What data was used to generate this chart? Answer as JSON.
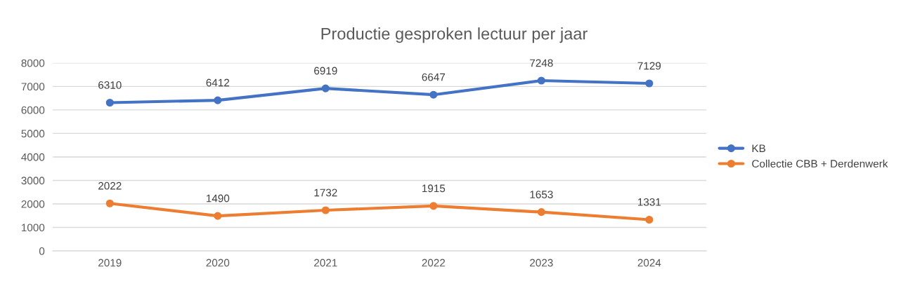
{
  "chart_data": {
    "type": "line",
    "title": "Productie gesproken lectuur per jaar",
    "categories": [
      "2019",
      "2020",
      "2021",
      "2022",
      "2023",
      "2024"
    ],
    "series": [
      {
        "name": "KB",
        "color": "#4472c4",
        "values": [
          6310,
          6412,
          6919,
          6647,
          7248,
          7129
        ]
      },
      {
        "name": "Collectie CBB + Derdenwerk",
        "color": "#ed7d31",
        "values": [
          2022,
          1490,
          1732,
          1915,
          1653,
          1331
        ]
      }
    ],
    "ylim": [
      0,
      8000
    ],
    "yticks": [
      0,
      1000,
      2000,
      3000,
      4000,
      5000,
      6000,
      7000,
      8000
    ],
    "grid": "y",
    "legend": "right",
    "marker": "circle",
    "line_style": "solid",
    "data_labels": true
  }
}
